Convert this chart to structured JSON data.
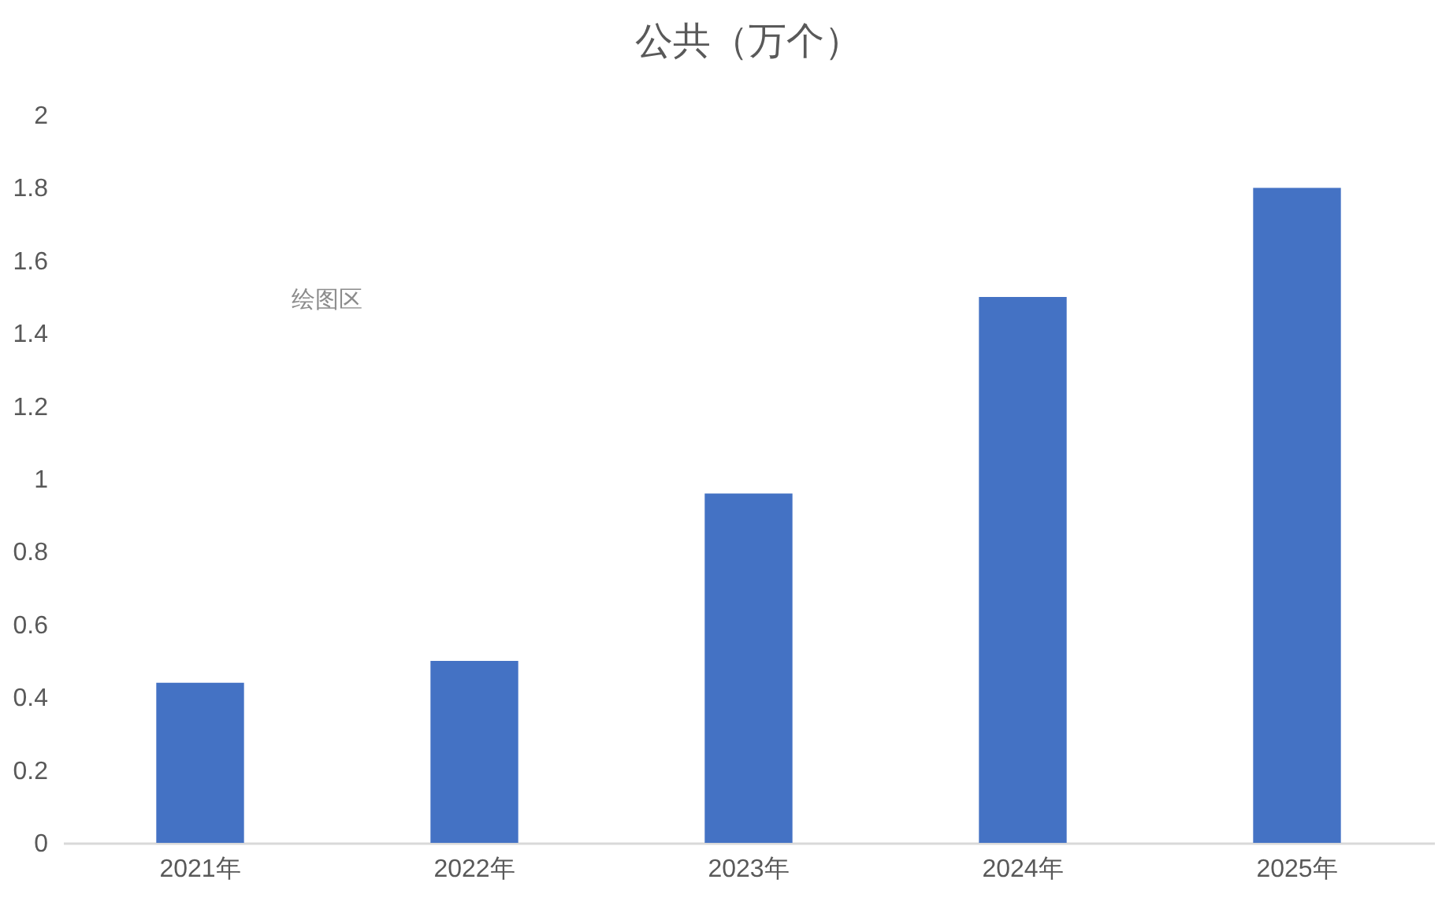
{
  "chart_data": {
    "type": "bar",
    "title": "公共（万个）",
    "categories": [
      "2021年",
      "2022年",
      "2023年",
      "2024年",
      "2025年"
    ],
    "values": [
      0.44,
      0.5,
      0.96,
      1.5,
      1.8
    ],
    "color": "#4472c4",
    "ylim": [
      0,
      2
    ],
    "yticks": [
      0,
      0.2,
      0.4,
      0.6,
      0.8,
      1,
      1.2,
      1.4,
      1.6,
      1.8,
      2
    ],
    "annotations": [
      "绘图区"
    ]
  }
}
